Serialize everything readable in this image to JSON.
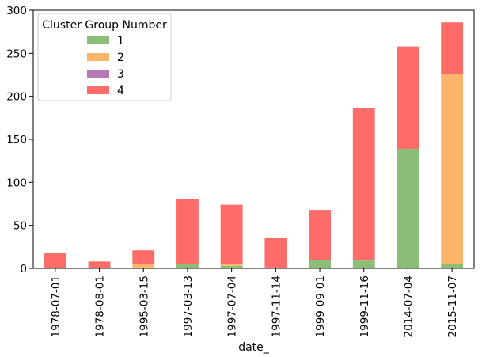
{
  "chart_data": {
    "type": "bar",
    "stacked": true,
    "xlabel": "date_",
    "ylabel": "",
    "ylim": [
      0,
      300
    ],
    "yticks": [
      0,
      50,
      100,
      150,
      200,
      250,
      300
    ],
    "categories": [
      "1978-07-01",
      "1978-08-01",
      "1995-03-15",
      "1997-03-13",
      "1997-07-04",
      "1997-11-14",
      "1999-09-01",
      "1999-11-16",
      "2014-07-04",
      "2015-11-07"
    ],
    "series": [
      {
        "name": "1",
        "color": "#8bbe76",
        "values": [
          0,
          0,
          1,
          5,
          3,
          1,
          10,
          9,
          139,
          5
        ]
      },
      {
        "name": "2",
        "color": "#fdb56c",
        "values": [
          0,
          0,
          4,
          0,
          2,
          0,
          0,
          0,
          0,
          221
        ]
      },
      {
        "name": "3",
        "color": "#b57ab3",
        "values": [
          0,
          0,
          0,
          0,
          0,
          0,
          0,
          0,
          0,
          0
        ]
      },
      {
        "name": "4",
        "color": "#fe6c6a",
        "values": [
          18,
          8,
          16,
          76,
          69,
          34,
          58,
          177,
          119,
          60
        ]
      }
    ],
    "legend": {
      "title": "Cluster Group Number",
      "placement": "top-left"
    },
    "grid": false
  }
}
